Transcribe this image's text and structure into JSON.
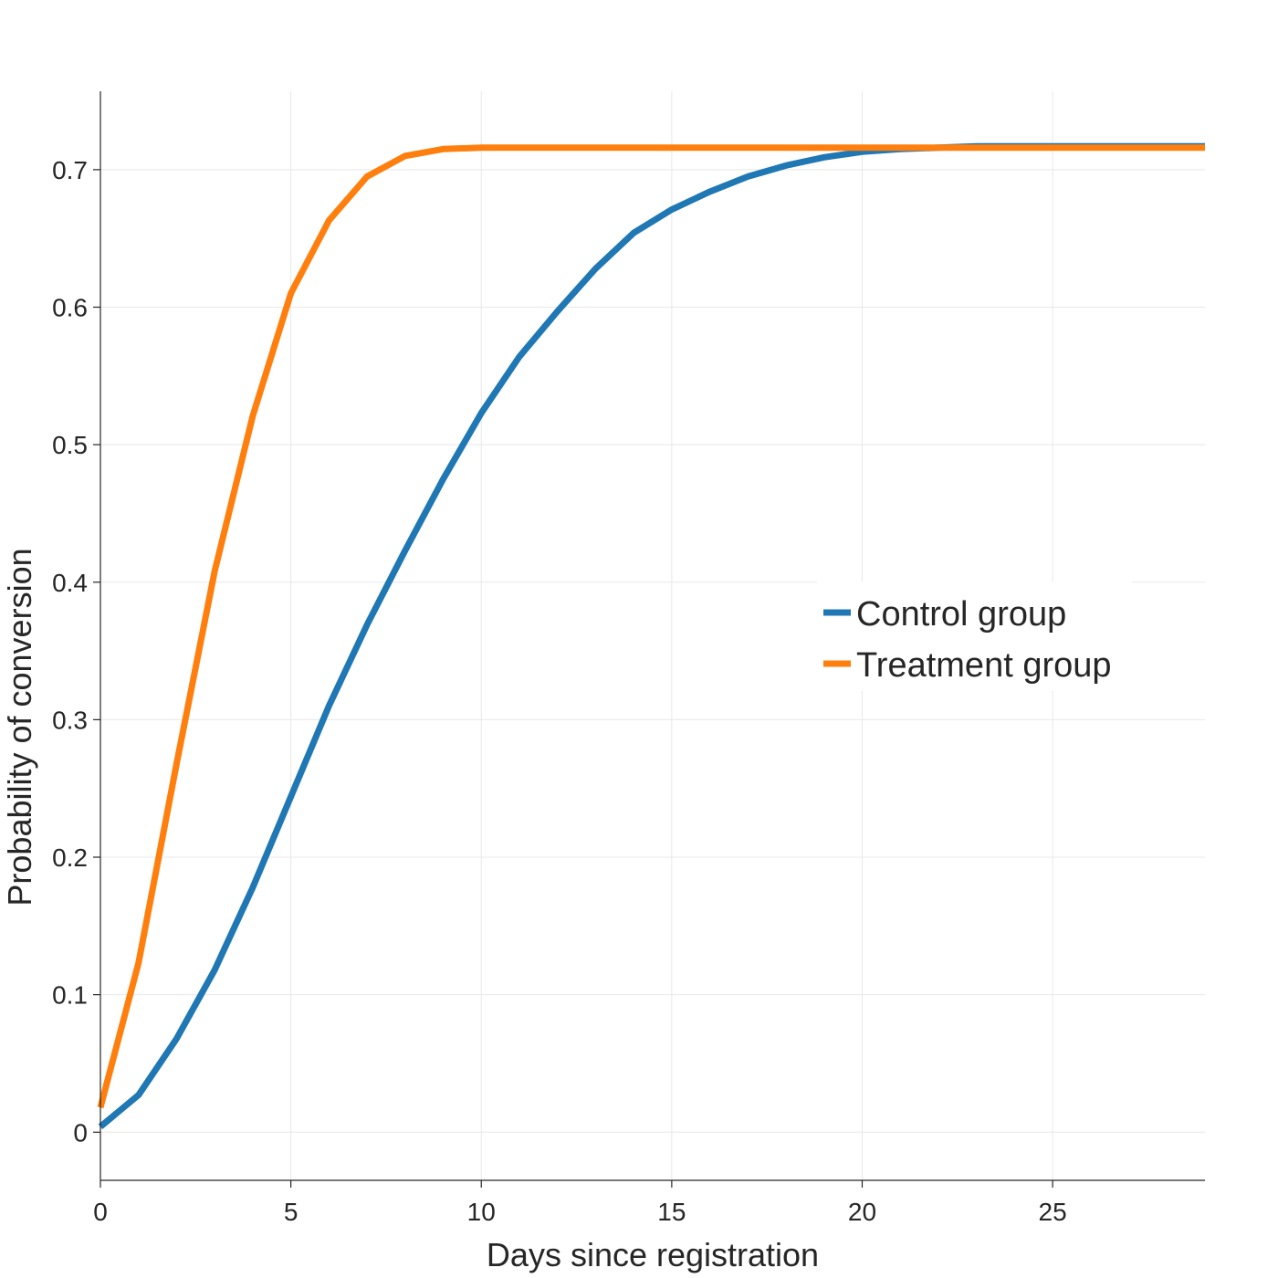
{
  "chart_data": {
    "type": "line",
    "xlabel": "Days since registration",
    "ylabel": "Probability of conversion",
    "xlim": [
      0,
      29
    ],
    "ylim": [
      -0.035,
      0.757
    ],
    "x_ticks": [
      "0",
      "5",
      "10",
      "15",
      "20",
      "25"
    ],
    "y_ticks": [
      "0",
      "0.1",
      "0.2",
      "0.3",
      "0.4",
      "0.5",
      "0.6",
      "0.7"
    ],
    "grid": true,
    "legend_position": "center-right",
    "x": [
      0,
      1,
      2,
      3,
      4,
      5,
      6,
      7,
      8,
      9,
      10,
      11,
      12,
      13,
      14,
      15,
      16,
      17,
      18,
      19,
      20,
      21,
      22,
      23,
      24,
      25,
      26,
      27,
      28,
      29
    ],
    "series": [
      {
        "name": "Control group",
        "color": "#1f77b4",
        "values": [
          0.004,
          0.027,
          0.068,
          0.118,
          0.178,
          0.244,
          0.31,
          0.369,
          0.423,
          0.475,
          0.523,
          0.564,
          0.597,
          0.628,
          0.654,
          0.671,
          0.684,
          0.695,
          0.703,
          0.709,
          0.713,
          0.715,
          0.716,
          0.717,
          0.717,
          0.717,
          0.717,
          0.717,
          0.717,
          0.717
        ]
      },
      {
        "name": "Treatment group",
        "color": "#ff7f0e",
        "values": [
          0.018,
          0.123,
          0.268,
          0.408,
          0.521,
          0.61,
          0.663,
          0.695,
          0.71,
          0.715,
          0.716,
          0.716,
          0.716,
          0.716,
          0.716,
          0.716,
          0.716,
          0.716,
          0.716,
          0.716,
          0.716,
          0.716,
          0.716,
          0.716,
          0.716,
          0.716,
          0.716,
          0.716,
          0.716,
          0.716
        ]
      }
    ]
  }
}
